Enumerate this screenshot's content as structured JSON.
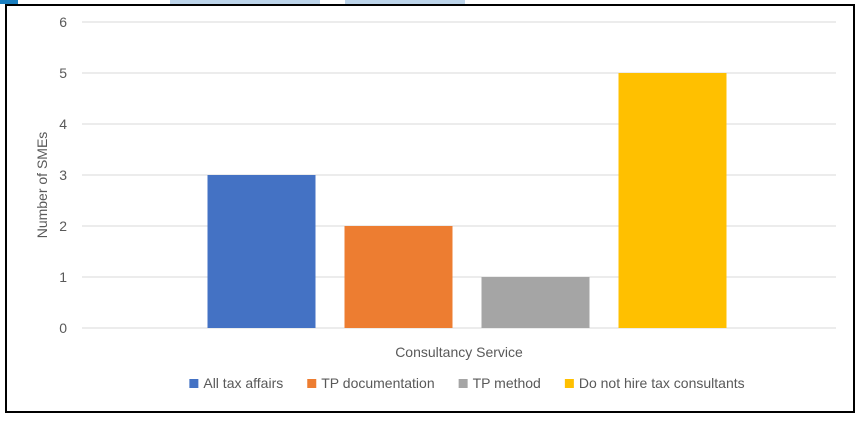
{
  "chart_data": {
    "type": "bar",
    "title": "",
    "xlabel": "Consultancy Service",
    "ylabel": "Number of SMEs",
    "ylim": [
      0,
      6
    ],
    "yticks": [
      "0",
      "1",
      "2",
      "3",
      "4",
      "5",
      "6"
    ],
    "grid": true,
    "legend_position": "bottom",
    "categories": [
      "Consultancy Service"
    ],
    "series": [
      {
        "name": "All tax affairs",
        "values": [
          3
        ],
        "color": "#4472C4"
      },
      {
        "name": "TP documentation",
        "values": [
          2
        ],
        "color": "#ED7D31"
      },
      {
        "name": "TP method",
        "values": [
          1
        ],
        "color": "#A5A5A5"
      },
      {
        "name": "Do not hire tax consultants",
        "values": [
          5
        ],
        "color": "#FFC000"
      }
    ]
  }
}
